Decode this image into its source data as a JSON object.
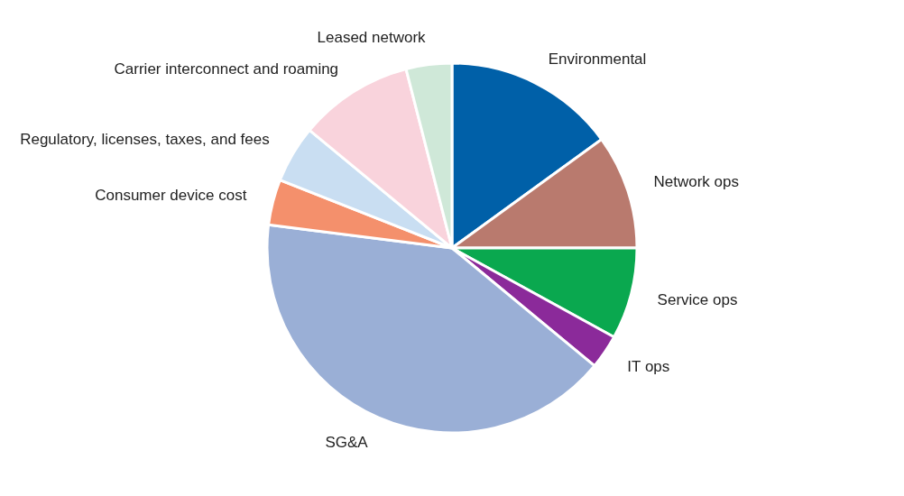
{
  "chart_data": {
    "type": "pie",
    "categories": [
      "Environmental",
      "Network ops",
      "Service ops",
      "IT ops",
      "SG&A",
      "Consumer device cost",
      "Regulatory, licenses, taxes, and fees",
      "Carrier interconnect and roaming",
      "Leased network"
    ],
    "values": [
      15,
      10,
      8,
      3,
      41,
      4,
      5,
      10,
      4
    ],
    "colors": [
      "#0060a8",
      "#b97a6e",
      "#0aa84f",
      "#8b2a9a",
      "#9aafd6",
      "#f4906c",
      "#c9def2",
      "#f9d3dc",
      "#cfe8d8"
    ]
  }
}
